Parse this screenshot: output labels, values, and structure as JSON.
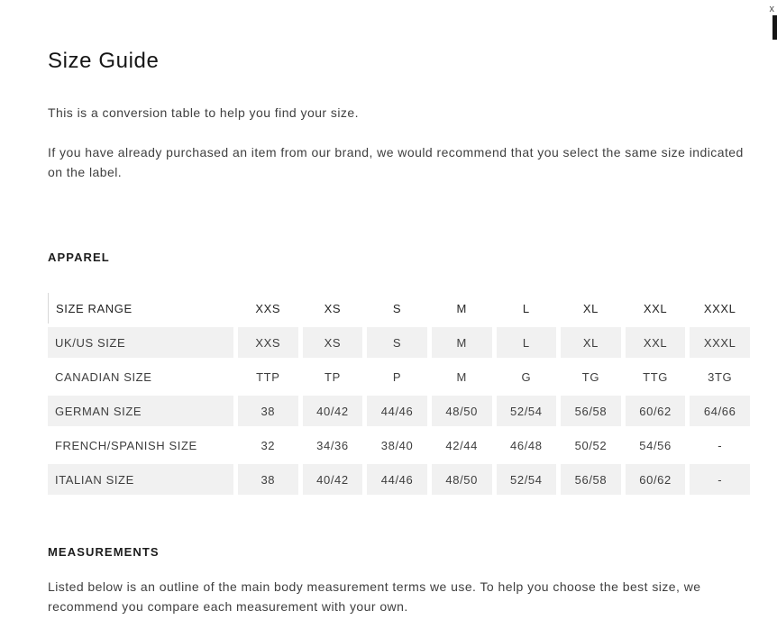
{
  "window": {
    "close_label": "x"
  },
  "page": {
    "title": "Size Guide",
    "intro_1": "This is a conversion table to help you find your size.",
    "intro_2": "If you have already purchased an item from our brand, we would recommend that you select the same size indicated on the label."
  },
  "apparel": {
    "heading": "APPAREL",
    "table": {
      "header": [
        "SIZE RANGE",
        "XXS",
        "XS",
        "S",
        "M",
        "L",
        "XL",
        "XXL",
        "XXXL"
      ],
      "rows": [
        {
          "label": "UK/US SIZE",
          "values": [
            "XXS",
            "XS",
            "S",
            "M",
            "L",
            "XL",
            "XXL",
            "XXXL"
          ]
        },
        {
          "label": "CANADIAN SIZE",
          "values": [
            "TTP",
            "TP",
            "P",
            "M",
            "G",
            "TG",
            "TTG",
            "3TG"
          ]
        },
        {
          "label": "GERMAN SIZE",
          "values": [
            "38",
            "40/42",
            "44/46",
            "48/50",
            "52/54",
            "56/58",
            "60/62",
            "64/66"
          ]
        },
        {
          "label": "FRENCH/SPANISH SIZE",
          "values": [
            "32",
            "34/36",
            "38/40",
            "42/44",
            "46/48",
            "50/52",
            "54/56",
            "-"
          ]
        },
        {
          "label": "ITALIAN SIZE",
          "values": [
            "38",
            "40/42",
            "44/46",
            "48/50",
            "52/54",
            "56/58",
            "60/62",
            "-"
          ]
        }
      ]
    }
  },
  "measurements": {
    "heading": "MEASUREMENTS",
    "description": "Listed below is an outline of the main body measurement terms we use. To help you choose the best size, we recommend you compare each measurement with your own."
  },
  "colors": {
    "cell_bg": "#f1f1f1",
    "heading_text": "#1c1c1c",
    "body_text": "#3f3f3f",
    "scrollbar_thumb": "#161616"
  }
}
